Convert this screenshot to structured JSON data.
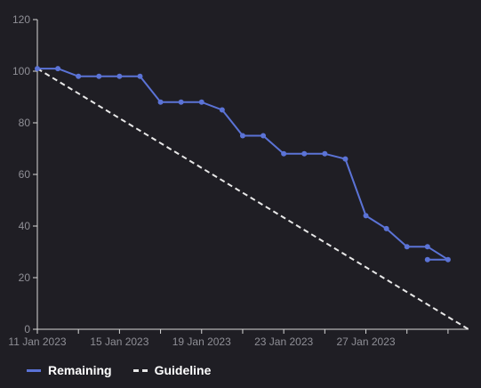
{
  "chart_data": {
    "type": "line",
    "x_axis": {
      "type": "date",
      "tick_labels": [
        "11 Jan 2023",
        "15 Jan 2023",
        "19 Jan 2023",
        "23 Jan 2023",
        "27 Jan 2023"
      ],
      "range": [
        "2023-01-11",
        "2023-02-01"
      ]
    },
    "y_axis": {
      "ticks": [
        0,
        20,
        40,
        60,
        80,
        100,
        120
      ],
      "ylim": [
        0,
        120
      ]
    },
    "grid": false,
    "legend_position": "bottom-left",
    "series": [
      {
        "name": "Remaining",
        "color": "#5b73d6",
        "style": "solid",
        "markers": true,
        "x": [
          "2023-01-11",
          "2023-01-12",
          "2023-01-13",
          "2023-01-14",
          "2023-01-15",
          "2023-01-16",
          "2023-01-17",
          "2023-01-18",
          "2023-01-19",
          "2023-01-20",
          "2023-01-21",
          "2023-01-22",
          "2023-01-23",
          "2023-01-24",
          "2023-01-25",
          "2023-01-26",
          "2023-01-27",
          "2023-01-28",
          "2023-01-29",
          "2023-01-30",
          "2023-01-31",
          "2023-01-30"
        ],
        "y": [
          101,
          101,
          98,
          98,
          98,
          98,
          88,
          88,
          88,
          85,
          75,
          75,
          68,
          68,
          68,
          66,
          44,
          39,
          32,
          32,
          27,
          27
        ]
      },
      {
        "name": "Guideline",
        "color": "#e8e8e8",
        "style": "dashed",
        "markers": false,
        "x": [
          "2023-01-11",
          "2023-02-01"
        ],
        "y": [
          101,
          0
        ]
      }
    ]
  },
  "legend": {
    "remaining_label": "Remaining",
    "guideline_label": "Guideline"
  }
}
